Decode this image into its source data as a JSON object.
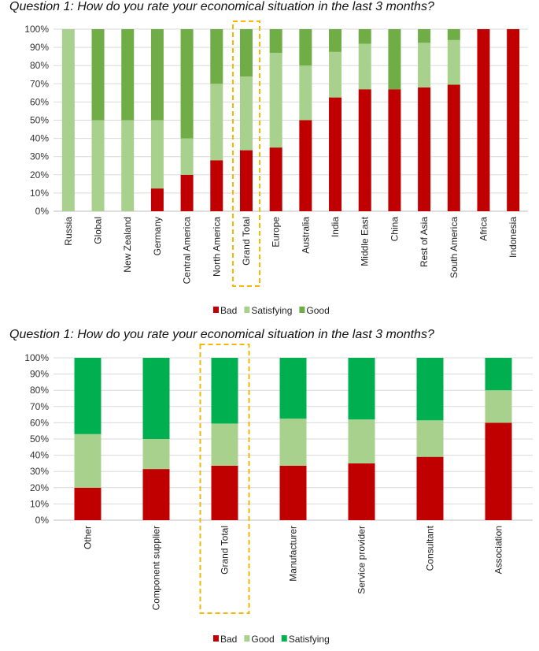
{
  "chart_data": [
    {
      "type": "bar",
      "stacked": true,
      "percent": true,
      "title": "Question 1: How do you rate your economical situation in the last 3 months?",
      "categories": [
        "Russia",
        "Global",
        "New Zealand",
        "Germany",
        "Central America",
        "North America",
        "Grand Total",
        "Europe",
        "Australia",
        "India",
        "Middle East",
        "China",
        "Rest of Asia",
        "South America",
        "Africa",
        "Indonesia"
      ],
      "highlighted_category": "Grand Total",
      "series": [
        {
          "name": "Bad",
          "color": "#c00000",
          "values": [
            0,
            0,
            0,
            12.5,
            20,
            28,
            33.5,
            35,
            50,
            62.5,
            67,
            67,
            68,
            69.5,
            100,
            100
          ]
        },
        {
          "name": "Satisfying",
          "color": "#a9d18e",
          "values": [
            100,
            50,
            50,
            37.5,
            20,
            42,
            40.5,
            52,
            30,
            25,
            25,
            0,
            24.5,
            24.5,
            0,
            0
          ]
        },
        {
          "name": "Good",
          "color": "#70ad47",
          "values": [
            0,
            50,
            50,
            50,
            60,
            30,
            26,
            13,
            20,
            12.5,
            8,
            33,
            7.5,
            6,
            0,
            0
          ]
        }
      ],
      "yticks": [
        "0%",
        "10%",
        "20%",
        "30%",
        "40%",
        "50%",
        "60%",
        "70%",
        "80%",
        "90%",
        "100%"
      ],
      "ylim": [
        0,
        100
      ],
      "grid": true,
      "legend_position": "bottom"
    },
    {
      "type": "bar",
      "stacked": true,
      "percent": true,
      "title": "Question 1: How do you rate your economical situation in the last 3 months?",
      "categories": [
        "Other",
        "Component supplier",
        "Grand Total",
        "Manufacturer",
        "Service provider",
        "Consultant",
        "Association"
      ],
      "highlighted_category": "Grand Total",
      "series": [
        {
          "name": "Bad",
          "color": "#c00000",
          "values": [
            20,
            31.5,
            33.5,
            33.5,
            35,
            39,
            60
          ]
        },
        {
          "name": "Good",
          "color": "#a9d18e",
          "values": [
            33,
            18.5,
            26,
            29,
            27,
            22.5,
            20
          ]
        },
        {
          "name": "Satisfying",
          "color": "#00b050",
          "values": [
            47,
            50,
            40.5,
            37.5,
            38,
            38.5,
            20
          ]
        }
      ],
      "yticks": [
        "0%",
        "10%",
        "20%",
        "30%",
        "40%",
        "50%",
        "60%",
        "70%",
        "80%",
        "90%",
        "100%"
      ],
      "ylim": [
        0,
        100
      ],
      "grid": true,
      "legend_position": "bottom"
    }
  ]
}
